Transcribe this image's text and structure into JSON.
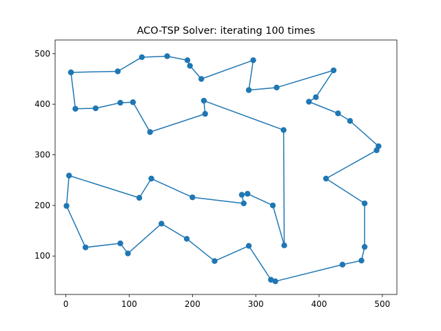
{
  "chart_data": {
    "type": "line",
    "title": "ACO-TSP Solver: iterating 100 times",
    "xlabel": "",
    "ylabel": "",
    "xlim": [
      -17,
      523
    ],
    "ylim": [
      24,
      527
    ],
    "xticks": [
      0,
      100,
      200,
      300,
      400,
      500
    ],
    "yticks": [
      100,
      200,
      300,
      400,
      500
    ],
    "grid": false,
    "legend": "none",
    "colors": {
      "series": "#1f77b4",
      "axes": "#000000",
      "background": "#ffffff"
    },
    "series": [
      {
        "marker": "circle",
        "x": [
          8,
          82,
          120,
          160,
          192,
          196,
          214,
          296,
          289,
          333,
          423,
          395,
          384,
          430,
          449,
          494,
          491,
          411,
          472,
          472,
          467,
          437,
          331,
          324,
          289,
          235,
          191,
          151,
          98,
          86,
          31,
          1,
          5,
          116,
          135,
          200,
          281,
          278,
          287,
          327,
          345,
          344,
          218,
          220,
          133,
          106,
          86,
          47,
          15,
          8
        ],
        "y": [
          463,
          465,
          493,
          495,
          487,
          476,
          450,
          487,
          428,
          433,
          467,
          414,
          405,
          382,
          367,
          317,
          309,
          253,
          204,
          118,
          91,
          83,
          50,
          53,
          120,
          90,
          134,
          164,
          105,
          125,
          117,
          199,
          259,
          215,
          253,
          216,
          204,
          221,
          223,
          200,
          121,
          349,
          407,
          381,
          345,
          404,
          403,
          392,
          391,
          463
        ]
      }
    ]
  }
}
